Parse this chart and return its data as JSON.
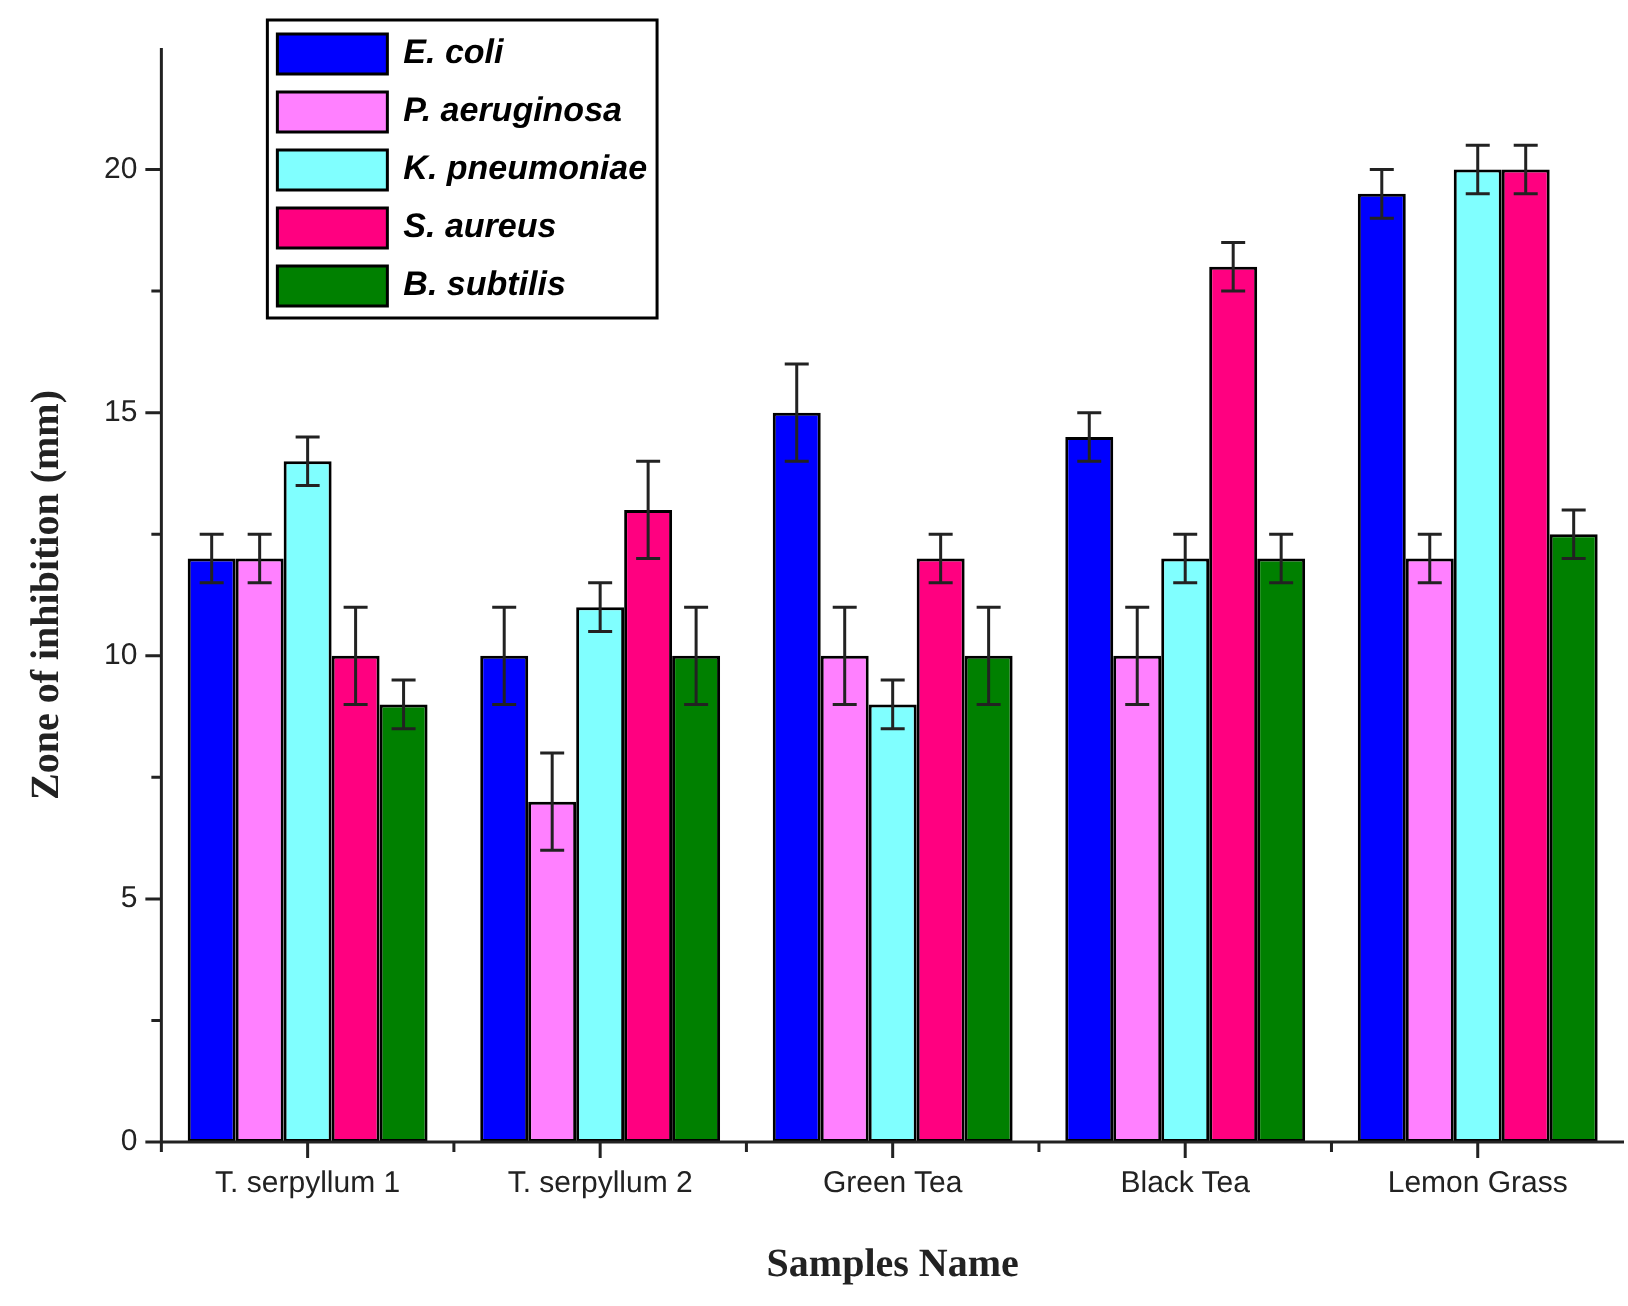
{
  "chart_data": {
    "type": "bar",
    "xlabel": "Samples Name",
    "ylabel": "Zone of inhibition (mm)",
    "categories": [
      "T. serpyllum 1",
      "T. serpyllum 2",
      "Green Tea",
      "Black Tea",
      "Lemon Grass"
    ],
    "series": [
      {
        "name": "E. coli",
        "color": "#0000ff",
        "values": [
          12,
          10,
          15,
          14.5,
          19.5
        ],
        "errors": [
          0.5,
          1,
          1,
          0.5,
          0.5
        ]
      },
      {
        "name": "P. aeruginosa",
        "color": "#ff80ff",
        "values": [
          12,
          7,
          10,
          10,
          12
        ],
        "errors": [
          0.5,
          1,
          1,
          1,
          0.5
        ]
      },
      {
        "name": "K. pneumoniae",
        "color": "#80ffff",
        "values": [
          14,
          11,
          9,
          12,
          20
        ],
        "errors": [
          0.5,
          0.5,
          0.5,
          0.5,
          0.5
        ]
      },
      {
        "name": "S. aureus",
        "color": "#ff0080",
        "values": [
          10,
          13,
          12,
          18,
          20
        ],
        "errors": [
          1,
          1,
          0.5,
          0.5,
          0.5
        ]
      },
      {
        "name": "B. subtilis",
        "color": "#008000",
        "values": [
          9,
          10,
          10,
          12,
          12.5
        ],
        "errors": [
          0.5,
          1,
          1,
          0.5,
          0.5
        ]
      }
    ],
    "ylim": [
      0,
      22.5
    ],
    "yticks": [
      0,
      {
        "value": 2.5,
        "label": null
      },
      5,
      {
        "value": 7.5,
        "label": null
      },
      10,
      {
        "value": 12.5,
        "label": null
      },
      15,
      {
        "value": 17.5,
        "label": null
      },
      20
    ],
    "grid": false,
    "legend": "top left"
  }
}
